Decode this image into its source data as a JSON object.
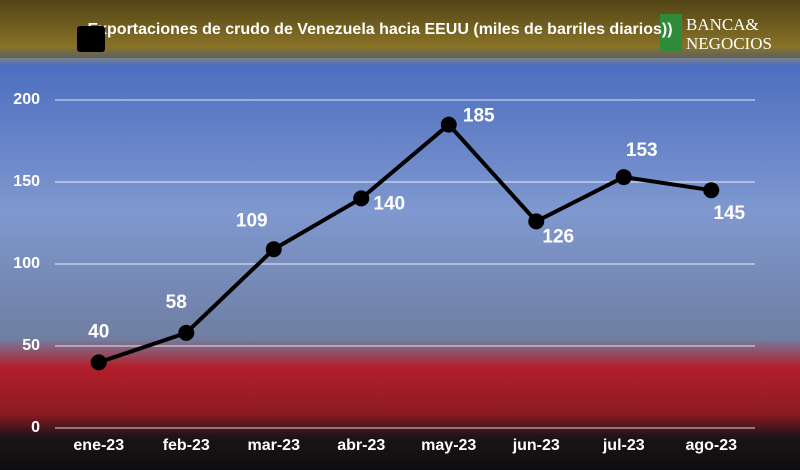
{
  "chart_data": {
    "type": "line",
    "title": "Exportaciones de crudo de Venezuela hacia EEUU (miles de barriles diarios))",
    "categories": [
      "ene-23",
      "feb-23",
      "mar-23",
      "abr-23",
      "may-23",
      "jun-23",
      "jul-23",
      "ago-23"
    ],
    "series": [
      {
        "color": "#000000",
        "values": [
          40,
          58,
          109,
          140,
          185,
          126,
          153,
          145
        ]
      }
    ],
    "ylim": [
      0,
      200
    ],
    "yticks": [
      0,
      50,
      100,
      150,
      200
    ],
    "grid": true
  },
  "logo": {
    "line1": "BANCA&",
    "line2": "NEGOCIOS"
  }
}
